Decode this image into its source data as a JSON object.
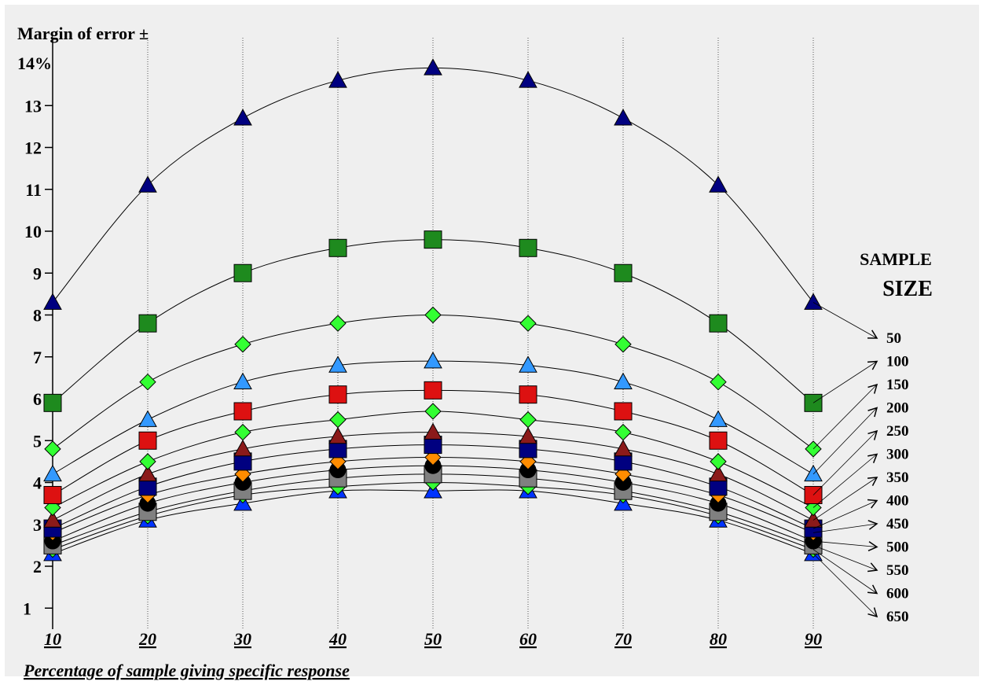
{
  "chart_data": {
    "type": "line",
    "ylabel": "Margin of error ±",
    "xlabel": "Percentage of sample giving specific response",
    "y_top_label": "14%",
    "yticks": [
      "2",
      "3",
      "4",
      "5",
      "6",
      "7",
      "8",
      "9",
      "10",
      "11",
      "12",
      "13"
    ],
    "y_bottom_tick": "1",
    "xticks": [
      "10",
      "20",
      "30",
      "40",
      "50",
      "60",
      "70",
      "80",
      "90"
    ],
    "x": [
      10,
      20,
      30,
      40,
      50,
      60,
      70,
      80,
      90
    ],
    "ylim": [
      1,
      14
    ],
    "xlim": [
      10,
      90
    ],
    "grid": "vertical-dotted",
    "legend_title_line1": "SAMPLE",
    "legend_title_line2": "SIZE",
    "legend_placement": "right",
    "series": [
      {
        "name": "50",
        "marker": "triangle",
        "color": "#000080",
        "values": [
          8.3,
          11.1,
          12.7,
          13.6,
          13.9,
          13.6,
          12.7,
          11.1,
          8.3
        ]
      },
      {
        "name": "100",
        "marker": "square",
        "color": "#1e8a1e",
        "values": [
          5.9,
          7.8,
          9.0,
          9.6,
          9.8,
          9.6,
          9.0,
          7.8,
          5.9
        ]
      },
      {
        "name": "150",
        "marker": "diamond",
        "color": "#33ff33",
        "values": [
          4.8,
          6.4,
          7.3,
          7.8,
          8.0,
          7.8,
          7.3,
          6.4,
          4.8
        ]
      },
      {
        "name": "200",
        "marker": "triangle",
        "color": "#3399ff",
        "values": [
          4.2,
          5.5,
          6.4,
          6.8,
          6.9,
          6.8,
          6.4,
          5.5,
          4.2
        ]
      },
      {
        "name": "250",
        "marker": "square",
        "color": "#dd1111",
        "values": [
          3.7,
          5.0,
          5.7,
          6.1,
          6.2,
          6.1,
          5.7,
          5.0,
          3.7
        ]
      },
      {
        "name": "300",
        "marker": "diamond",
        "color": "#33ff33",
        "values": [
          3.4,
          4.5,
          5.2,
          5.5,
          5.7,
          5.5,
          5.2,
          4.5,
          3.4
        ]
      },
      {
        "name": "350",
        "marker": "triangle",
        "color": "#8b1a1a",
        "values": [
          3.1,
          4.2,
          4.8,
          5.1,
          5.2,
          5.1,
          4.8,
          4.2,
          3.1
        ]
      },
      {
        "name": "400",
        "marker": "square",
        "color": "#000080",
        "values": [
          2.9,
          3.9,
          4.5,
          4.8,
          4.9,
          4.8,
          4.5,
          3.9,
          2.9
        ]
      },
      {
        "name": "450",
        "marker": "diamond",
        "color": "#ff8c00",
        "values": [
          2.8,
          3.7,
          4.2,
          4.5,
          4.6,
          4.5,
          4.2,
          3.7,
          2.8
        ]
      },
      {
        "name": "500",
        "marker": "circle",
        "color": "#000000",
        "values": [
          2.6,
          3.5,
          4.0,
          4.3,
          4.4,
          4.3,
          4.0,
          3.5,
          2.6
        ]
      },
      {
        "name": "550",
        "marker": "square",
        "color": "#808080",
        "values": [
          2.5,
          3.3,
          3.8,
          4.1,
          4.2,
          4.1,
          3.8,
          3.3,
          2.5
        ]
      },
      {
        "name": "600",
        "marker": "diamond",
        "color": "#33ff33",
        "values": [
          2.4,
          3.2,
          3.7,
          3.9,
          4.0,
          3.9,
          3.7,
          3.2,
          2.4
        ]
      },
      {
        "name": "650",
        "marker": "triangle",
        "color": "#0033ff",
        "values": [
          2.3,
          3.1,
          3.5,
          3.8,
          3.8,
          3.8,
          3.5,
          3.1,
          2.3
        ]
      }
    ]
  }
}
